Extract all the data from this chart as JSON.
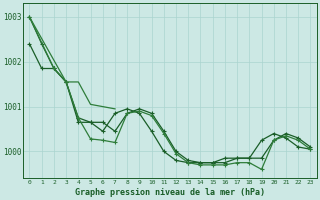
{
  "background_color": "#cce8e4",
  "grid_color": "#aad4cf",
  "line_color_dark": "#1a5e28",
  "line_color_medium": "#2e7d3a",
  "xlabel": "Graphe pression niveau de la mer (hPa)",
  "xlim": [
    -0.5,
    23.5
  ],
  "ylim": [
    999.4,
    1003.3
  ],
  "yticks": [
    1000,
    1001,
    1002,
    1003
  ],
  "xticks": [
    0,
    1,
    2,
    3,
    4,
    5,
    6,
    7,
    8,
    9,
    10,
    11,
    12,
    13,
    14,
    15,
    16,
    17,
    18,
    19,
    20,
    21,
    22,
    23
  ],
  "series": [
    {
      "data": [
        1003.0,
        1002.4,
        1001.85,
        1001.55,
        1000.75,
        1000.65,
        1000.65,
        1000.45,
        1000.85,
        1000.95,
        1000.85,
        1000.45,
        1000.0,
        999.8,
        999.75,
        999.75,
        999.75,
        999.85,
        999.85,
        999.85,
        1000.25,
        1000.4,
        1000.3,
        1000.1
      ],
      "color": "#1a5e28",
      "lw": 0.9,
      "marker": "+",
      "ms": 3
    },
    {
      "data": [
        1002.4,
        1001.85,
        1001.85,
        1001.55,
        1000.65,
        1000.65,
        1000.45,
        1000.85,
        1000.95,
        1000.85,
        1000.45,
        1000.0,
        999.8,
        999.75,
        999.75,
        999.75,
        999.85,
        999.85,
        999.85,
        1000.25,
        1000.4,
        1000.3,
        1000.1,
        1000.05
      ],
      "color": "#1a5e28",
      "lw": 0.9,
      "marker": "+",
      "ms": 3
    },
    {
      "data": [
        1003.0,
        null,
        1001.85,
        1001.55,
        1000.75,
        1000.28,
        1000.25,
        1000.2,
        1000.85,
        1000.9,
        1000.8,
        1000.4,
        999.95,
        999.75,
        999.7,
        999.7,
        999.7,
        999.75,
        999.75,
        999.6,
        1000.25,
        1000.35,
        1000.25,
        1000.05
      ],
      "color": "#2e7d3a",
      "lw": 0.9,
      "marker": "+",
      "ms": 3
    },
    {
      "data": [
        1003.0,
        null,
        null,
        1001.55,
        1001.55,
        1001.05,
        1001.0,
        1000.95,
        null,
        null,
        null,
        null,
        null,
        null,
        null,
        null,
        null,
        null,
        null,
        null,
        null,
        null,
        null,
        null
      ],
      "color": "#2e7d3a",
      "lw": 0.9,
      "marker": null,
      "ms": 0
    }
  ]
}
